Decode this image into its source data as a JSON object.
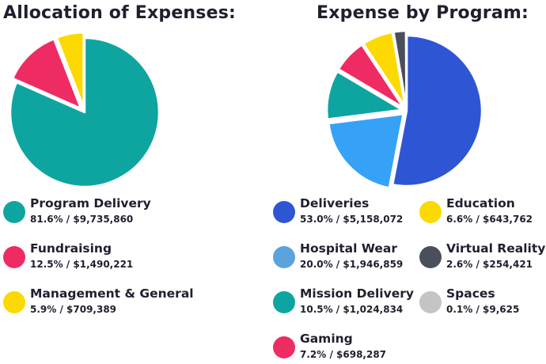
{
  "chart_data": [
    {
      "type": "pie",
      "title": "Allocation of Expenses:",
      "slices": [
        {
          "name": "Program Delivery",
          "value_text": "81.6% / $9,735,860",
          "percent": 81.6,
          "amount": 9735860,
          "color": "#0ea5a0"
        },
        {
          "name": "Fundraising",
          "value_text": "12.5% / $1,490,221",
          "percent": 12.5,
          "amount": 1490221,
          "color": "#ef2b63"
        },
        {
          "name": "Management & General",
          "value_text": "5.9% / $709,389",
          "percent": 5.9,
          "amount": 709389,
          "color": "#fcd900"
        }
      ]
    },
    {
      "type": "pie",
      "title": "Expense by Program:",
      "slices": [
        {
          "name": "Deliveries",
          "value_text": "53.0% / $5,158,072",
          "percent": 53.0,
          "amount": 5158072,
          "color": "#2e55d4"
        },
        {
          "name": "Hospital Wear",
          "value_text": "20.0% / $1,946,859",
          "percent": 20.0,
          "amount": 1946859,
          "color": "#35a2f7",
          "legend_color": "#5ba3dc"
        },
        {
          "name": "Mission Delivery",
          "value_text": "10.5% / $1,024,834",
          "percent": 10.5,
          "amount": 1024834,
          "color": "#0ea5a0"
        },
        {
          "name": "Gaming",
          "value_text": "7.2% / $698,287",
          "percent": 7.2,
          "amount": 698287,
          "color": "#ef2b63"
        },
        {
          "name": "Education",
          "value_text": "6.6% / $643,762",
          "percent": 6.6,
          "amount": 643762,
          "color": "#fcd900"
        },
        {
          "name": "Virtual Reality",
          "value_text": "2.6% / $254,421",
          "percent": 2.6,
          "amount": 254421,
          "color": "#4b4f5c"
        },
        {
          "name": "Spaces",
          "value_text": "0.1% / $9,625",
          "percent": 0.1,
          "amount": 9625,
          "color": "#c4c4c4"
        }
      ]
    }
  ]
}
